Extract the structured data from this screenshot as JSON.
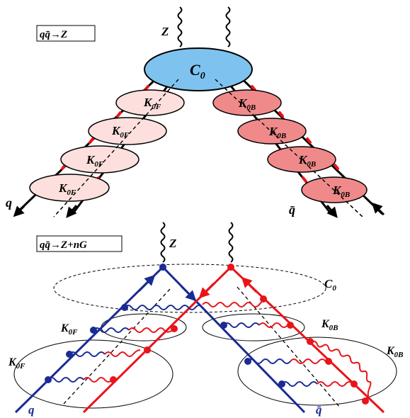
{
  "top_panel": {
    "process_label": "qq̄→Z",
    "boson_label": "Z",
    "hard_blob_label": "C",
    "hard_blob_sub": "0",
    "forward_label": "K",
    "forward_sub": "0F",
    "backward_label": "K",
    "backward_sub": "0B",
    "quark_label": "q",
    "antiquark_label": "q̄"
  },
  "bottom_panel": {
    "process_label": "qq̄→Z+nG",
    "boson_label": "Z",
    "hard_region_label": "C",
    "hard_region_sub": "0",
    "forward_label": "K",
    "forward_sub": "0F",
    "backward_label": "K",
    "backward_sub": "0B",
    "quark_label": "q",
    "antiquark_label": "q̄"
  },
  "colors": {
    "hard_blob": "#7ec3f0",
    "forward_blob": "#fde0dd",
    "backward_blob": "#f08a8a",
    "quark_line": "#1a2b94",
    "antiquark_line": "#e8141a",
    "cut_marks": "#e8141a",
    "ink": "#000000"
  }
}
